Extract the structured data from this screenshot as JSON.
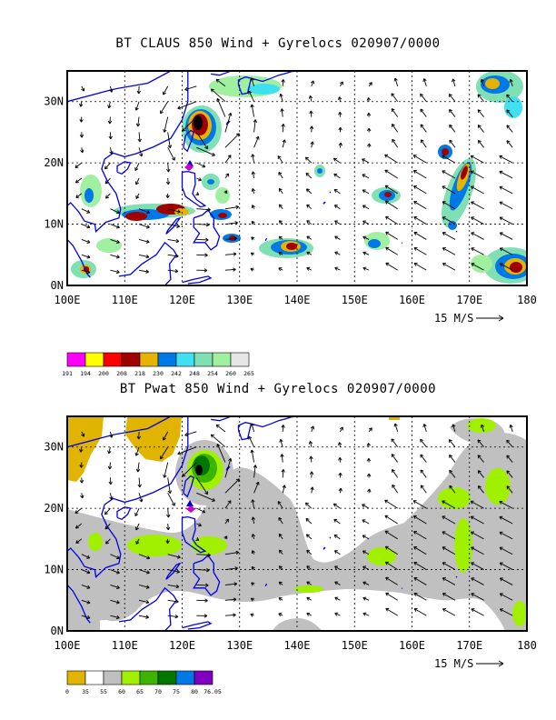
{
  "panels": [
    {
      "id": "top",
      "title": "BT CLAUS 850 Wind + Gyrelocs 020907/0000",
      "x_ticks": [
        "100E",
        "110E",
        "120E",
        "130E",
        "140E",
        "150E",
        "160E",
        "170E",
        "180"
      ],
      "y_ticks": [
        "0N",
        "10N",
        "20N",
        "30N"
      ],
      "vector_ref_label": "15 M/S",
      "colorbar_labels": [
        "191",
        "194",
        "200",
        "208",
        "218",
        "230",
        "242",
        "248",
        "254",
        "260",
        "265"
      ],
      "colorbar_colors": [
        "#ff00ff",
        "#ffff00",
        "#ff0000",
        "#a00000",
        "#e6b400",
        "#0078e6",
        "#40e0f0",
        "#80e0b4",
        "#a0f0a0",
        "#e6e6e6"
      ]
    },
    {
      "id": "bottom",
      "title": "BT Pwat 850 Wind + Gyrelocs 020907/0000",
      "x_ticks": [
        "100E",
        "110E",
        "120E",
        "130E",
        "140E",
        "150E",
        "160E",
        "170E",
        "180"
      ],
      "y_ticks": [
        "0N",
        "10N",
        "20N",
        "30N"
      ],
      "vector_ref_label": "15 M/S",
      "colorbar_labels": [
        "0",
        "35",
        "55",
        "60",
        "65",
        "70",
        "75",
        "80",
        "76.05"
      ],
      "colorbar_colors": [
        "#e0b400",
        "#ffffff",
        "#c0c0c0",
        "#a0f000",
        "#3cb400",
        "#007800",
        "#0078e6",
        "#8000c0"
      ]
    }
  ],
  "colors": {
    "coast": "#0000e6",
    "frame": "#000000",
    "vector": "#000000",
    "gyre_marker": "#cc00cc",
    "gyre_marker_blue": "#0000cc"
  }
}
